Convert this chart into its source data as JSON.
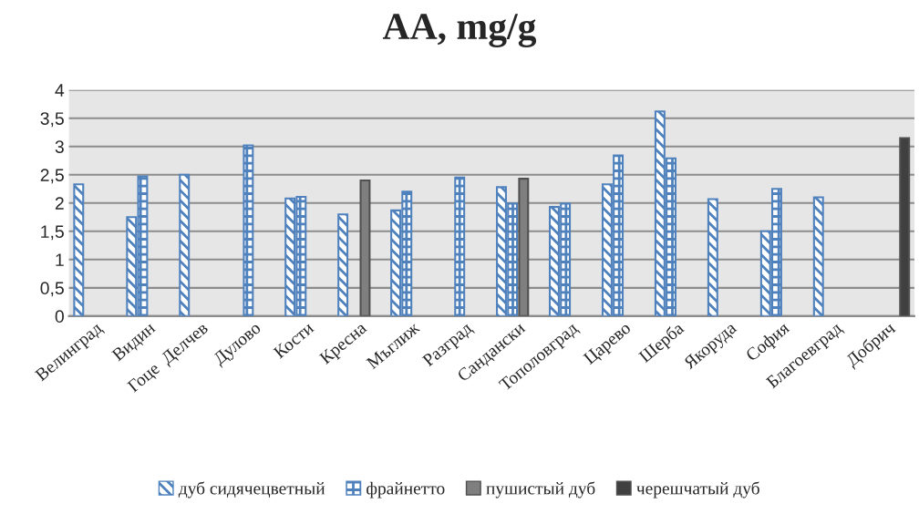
{
  "chart_data": {
    "type": "bar",
    "title": "AA, mg/g",
    "categories": [
      "Велинград",
      "Видин",
      "Гоце  Делчев",
      "Дулово",
      "Кости",
      "Кресна",
      "Мъглиж",
      "Разград",
      "Сандански",
      "Тополовград",
      "Царево",
      "Шерба",
      "Якоруда",
      "София",
      "Благоевград",
      "Добрич"
    ],
    "series": [
      {
        "name": "дуб сидячецветный",
        "color": "#4f81bd",
        "values": [
          2.33,
          1.75,
          2.5,
          null,
          2.08,
          1.8,
          1.87,
          null,
          2.28,
          1.93,
          2.33,
          3.62,
          2.07,
          1.5,
          2.1,
          null
        ]
      },
      {
        "name": "фрайнетто",
        "color": "#4f81bd",
        "values": [
          null,
          2.47,
          null,
          3.02,
          2.11,
          null,
          2.2,
          2.45,
          1.99,
          1.99,
          2.84,
          2.79,
          null,
          2.25,
          null,
          null
        ]
      },
      {
        "name": "пушистый дуб",
        "color": "#7f7f7f",
        "values": [
          null,
          null,
          null,
          null,
          null,
          2.4,
          null,
          null,
          2.43,
          null,
          null,
          null,
          null,
          null,
          null,
          null
        ]
      },
      {
        "name": "черешчатый дуб",
        "color": "#404040",
        "values": [
          null,
          null,
          null,
          null,
          null,
          null,
          null,
          null,
          null,
          null,
          null,
          null,
          null,
          null,
          null,
          3.15
        ]
      }
    ],
    "ylim": [
      0,
      4
    ],
    "yticks": [
      0,
      {
        "value": 0.5,
        "label": "0,5"
      },
      1,
      {
        "value": 1.5,
        "label": "1,5"
      },
      2,
      {
        "value": 2.5,
        "label": "2,5"
      },
      3,
      {
        "value": 3.5,
        "label": "3,5"
      },
      4
    ],
    "grid": "y",
    "legend": "bottom"
  }
}
